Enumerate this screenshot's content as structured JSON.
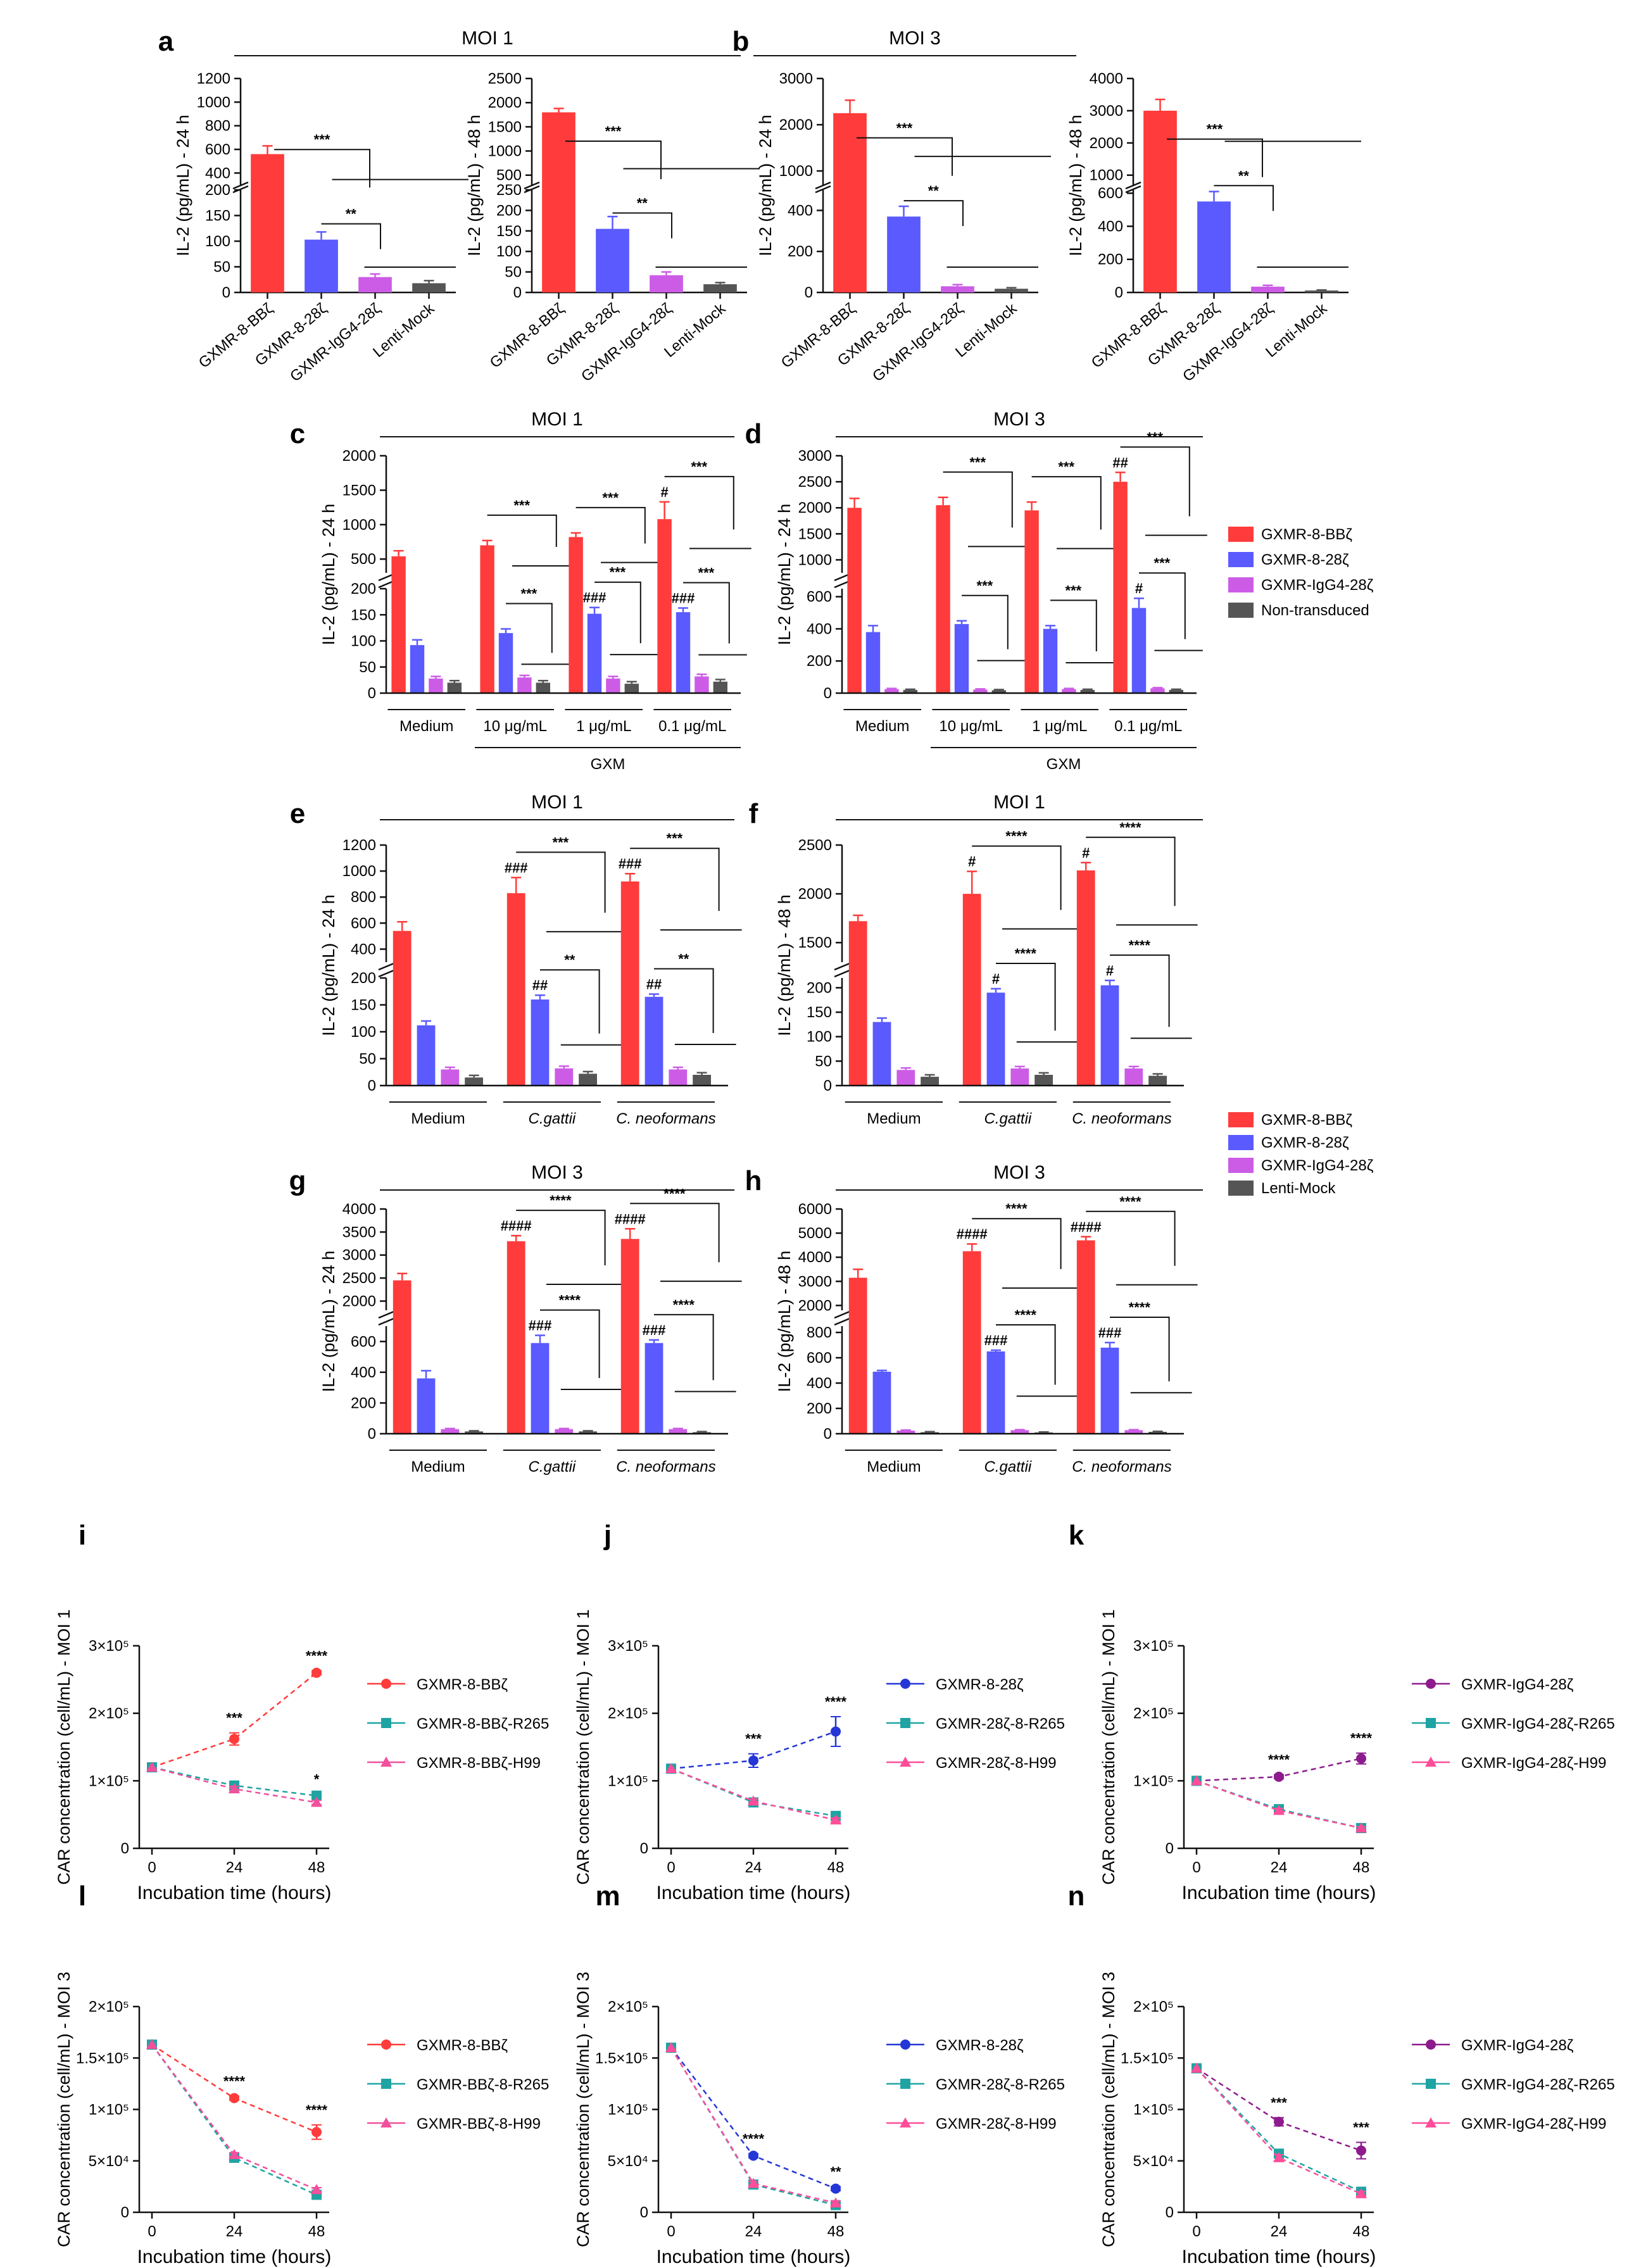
{
  "colors": {
    "red": "#ff3b3b",
    "blue": "#5a5aff",
    "purple": "#cc5ce6",
    "gray": "#555555",
    "teal": "#1fa3a3",
    "magenta": "#f0509c",
    "pink": "#ff4d9a",
    "navy": "#2436d6",
    "plum": "#8d1b8d"
  },
  "labels": [
    "a",
    "b",
    "c",
    "d",
    "e",
    "f",
    "g",
    "h",
    "i",
    "j",
    "k",
    "l",
    "m",
    "n"
  ],
  "headers": {
    "a": "MOI 1",
    "b": "MOI 3",
    "c": "MOI 1",
    "d": "MOI 3",
    "e": "MOI 1",
    "f": "MOI 1",
    "g": "MOI 3",
    "h": "MOI 3"
  },
  "legends": {
    "cd": [
      "GXMR-8-BBζ",
      "GXMR-8-28ζ",
      "GXMR-IgG4-28ζ",
      "Non-transduced"
    ],
    "efgh": [
      "GXMR-8-BBζ",
      "GXMR-8-28ζ",
      "GXMR-IgG4-28ζ",
      "Lenti-Mock"
    ]
  },
  "chart_data": [
    {
      "id": "a1",
      "type": "bar",
      "ylabel": "IL-2 (pg/mL) - 24 h",
      "categories": [
        "GXMR-8-BBζ",
        "GXMR-8-28ζ",
        "GXMR-IgG4-28ζ",
        "Lenti-Mock"
      ],
      "values": [
        560,
        103,
        30,
        18
      ],
      "errors": [
        70,
        15,
        6,
        5
      ],
      "ylim": [
        0,
        1200
      ],
      "break": [
        200,
        300
      ],
      "yticks_low": [
        "0",
        "50",
        "100",
        "150",
        "200"
      ],
      "yticks_high": [
        "400",
        "600",
        "800",
        "1000",
        "1200"
      ],
      "sig": [
        "***",
        "**"
      ]
    },
    {
      "id": "a2",
      "type": "bar",
      "ylabel": "IL-2 (pg/mL) - 48 h",
      "categories": [
        "GXMR-8-BBζ",
        "GXMR-8-28ζ",
        "GXMR-IgG4-28ζ",
        "Lenti-Mock"
      ],
      "values": [
        1800,
        155,
        42,
        20
      ],
      "errors": [
        80,
        30,
        8,
        4
      ],
      "ylim": [
        0,
        2500
      ],
      "break": [
        250,
        300
      ],
      "yticks_low": [
        "0",
        "50",
        "100",
        "150",
        "200",
        "250"
      ],
      "yticks_high": [
        "500",
        "1000",
        "1500",
        "2000",
        "2500"
      ],
      "sig": [
        "***",
        "**"
      ]
    },
    {
      "id": "b1",
      "type": "bar",
      "ylabel": "IL-2 (pg/mL) - 24 h",
      "categories": [
        "GXMR-8-BBζ",
        "GXMR-8-28ζ",
        "GXMR-IgG4-28ζ",
        "Lenti-Mock"
      ],
      "values": [
        2250,
        370,
        30,
        18
      ],
      "errors": [
        280,
        50,
        8,
        5
      ],
      "ylim": [
        0,
        3000
      ],
      "break": [
        500,
        700
      ],
      "yticks_low": [
        "0",
        "200",
        "400"
      ],
      "yticks_high": [
        "1000",
        "2000",
        "3000"
      ],
      "sig": [
        "***",
        "**"
      ]
    },
    {
      "id": "b2",
      "type": "bar",
      "ylabel": "IL-2 (pg/mL) - 48 h",
      "categories": [
        "GXMR-8-BBζ",
        "GXMR-8-28ζ",
        "GXMR-IgG4-28ζ",
        "Lenti-Mock"
      ],
      "values": [
        3000,
        550,
        35,
        12
      ],
      "errors": [
        350,
        60,
        8,
        3
      ],
      "ylim": [
        0,
        4000
      ],
      "break": [
        620,
        700
      ],
      "yticks_low": [
        "0",
        "200",
        "400",
        "600"
      ],
      "yticks_high": [
        "1000",
        "2000",
        "3000",
        "4000"
      ],
      "sig": [
        "***",
        "**"
      ]
    },
    {
      "id": "c",
      "type": "bar",
      "ylabel": "IL-2 (pg/mL) - 24 h",
      "groups": [
        "Medium",
        "10 μg/mL",
        "1 μg/mL",
        "0.1 μg/mL"
      ],
      "groupLabel": "GXM",
      "high": [
        540,
        700,
        820,
        1080
      ],
      "highErr": [
        80,
        70,
        60,
        250
      ],
      "low": [
        92,
        115,
        152,
        155
      ],
      "lowErr": [
        10,
        8,
        12,
        8
      ],
      "small": [
        [
          28,
          20
        ],
        [
          30,
          20
        ],
        [
          28,
          18
        ],
        [
          32,
          22
        ]
      ],
      "break": [
        200,
        300
      ],
      "yticks_low": [
        "0",
        "50",
        "100",
        "150",
        "200"
      ],
      "yticks_high": [
        "500",
        "1000",
        "1500",
        "2000"
      ],
      "ymax": 2000,
      "hash_high": [
        "",
        "",
        "",
        "#"
      ],
      "hash_low": [
        "",
        "",
        "###",
        "###"
      ],
      "sig": [
        "***",
        "***",
        "***",
        "***",
        "***"
      ]
    },
    {
      "id": "d",
      "type": "bar",
      "ylabel": "IL-2 (pg/mL) - 24 h",
      "groups": [
        "Medium",
        "10 μg/mL",
        "1 μg/mL",
        "0.1 μg/mL"
      ],
      "groupLabel": "GXM",
      "high": [
        2000,
        2050,
        1950,
        2500
      ],
      "highErr": [
        180,
        150,
        160,
        180
      ],
      "low": [
        380,
        430,
        400,
        530
      ],
      "lowErr": [
        40,
        20,
        20,
        60
      ],
      "small": [
        [
          25,
          20
        ],
        [
          22,
          18
        ],
        [
          25,
          20
        ],
        [
          30,
          20
        ]
      ],
      "break": [
        650,
        750
      ],
      "yticks_low": [
        "0",
        "200",
        "400",
        "600"
      ],
      "yticks_high": [
        "1000",
        "1500",
        "2000",
        "2500",
        "3000"
      ],
      "ymax": 3000,
      "hash_high": [
        "",
        "",
        "",
        "##"
      ],
      "hash_low": [
        "",
        "",
        "",
        "#"
      ],
      "sig": [
        "***",
        "***",
        "***",
        "***",
        "***"
      ]
    },
    {
      "id": "e",
      "type": "bar",
      "ylabel": "IL-2 (pg/mL) - 24 h",
      "groups": [
        "Medium",
        "C.gattii",
        "C. neoformans"
      ],
      "high": [
        540,
        830,
        920
      ],
      "highErr": [
        70,
        120,
        60
      ],
      "low": [
        112,
        160,
        165
      ],
      "lowErr": [
        8,
        8,
        5
      ],
      "small": [
        [
          30,
          15
        ],
        [
          32,
          22
        ],
        [
          30,
          20
        ]
      ],
      "break": [
        200,
        300
      ],
      "yticks_low": [
        "0",
        "50",
        "100",
        "150",
        "200"
      ],
      "yticks_high": [
        "400",
        "600",
        "800",
        "1000",
        "1200"
      ],
      "ymax": 1200,
      "hash_high": [
        "",
        "###",
        "###"
      ],
      "hash_low": [
        "",
        "##",
        "##"
      ],
      "sig": [
        "***",
        "**",
        "***",
        "**"
      ]
    },
    {
      "id": "f",
      "type": "bar",
      "ylabel": "IL-2 (pg/mL) - 48 h",
      "groups": [
        "Medium",
        "C.gattii",
        "C. neoformans"
      ],
      "high": [
        1720,
        2000,
        2240
      ],
      "highErr": [
        60,
        230,
        80
      ],
      "low": [
        130,
        190,
        205
      ],
      "lowErr": [
        8,
        8,
        10
      ],
      "small": [
        [
          32,
          18
        ],
        [
          35,
          22
        ],
        [
          35,
          20
        ]
      ],
      "break": [
        220,
        1300
      ],
      "yticks_low": [
        "0",
        "50",
        "100",
        "150",
        "200"
      ],
      "yticks_high": [
        "1500",
        "2000",
        "2500"
      ],
      "ymax": 2500,
      "hash_high": [
        "",
        "#",
        "#"
      ],
      "hash_low": [
        "",
        "#",
        "#"
      ],
      "sig": [
        "****",
        "****",
        "****",
        "****"
      ]
    },
    {
      "id": "g",
      "type": "bar",
      "ylabel": "IL-2 (pg/mL) - 24 h",
      "groups": [
        "Medium",
        "C.gattii",
        "C. neoformans"
      ],
      "high": [
        2450,
        3300,
        3350
      ],
      "highErr": [
        150,
        120,
        220
      ],
      "low": [
        360,
        590,
        590
      ],
      "lowErr": [
        50,
        50,
        20
      ],
      "small": [
        [
          30,
          15
        ],
        [
          30,
          15
        ],
        [
          30,
          10
        ]
      ],
      "break": [
        700,
        1800
      ],
      "yticks_low": [
        "0",
        "200",
        "400",
        "600"
      ],
      "yticks_high": [
        "2000",
        "2500",
        "3000",
        "3500",
        "4000"
      ],
      "ymax": 4000,
      "hash_high": [
        "",
        "####",
        "####"
      ],
      "hash_low": [
        "",
        "###",
        "###"
      ],
      "sig": [
        "****",
        "****",
        "****",
        "****"
      ]
    },
    {
      "id": "h",
      "type": "bar",
      "ylabel": "IL-2 (pg/mL) - 48 h",
      "groups": [
        "Medium",
        "C.gattii",
        "C. neoformans"
      ],
      "high": [
        3150,
        4250,
        4700
      ],
      "highErr": [
        350,
        300,
        150
      ],
      "low": [
        490,
        650,
        680
      ],
      "lowErr": [
        10,
        10,
        40
      ],
      "small": [
        [
          25,
          12
        ],
        [
          28,
          10
        ],
        [
          28,
          15
        ]
      ],
      "break": [
        850,
        1800
      ],
      "yticks_low": [
        "0",
        "200",
        "400",
        "600",
        "800"
      ],
      "yticks_high": [
        "2000",
        "3000",
        "4000",
        "5000",
        "6000"
      ],
      "ymax": 6000,
      "hash_high": [
        "",
        "####",
        "####"
      ],
      "hash_low": [
        "",
        "###",
        "###"
      ],
      "sig": [
        "****",
        "****",
        "****",
        "****"
      ]
    },
    {
      "id": "i",
      "type": "line",
      "ylabel": "CAR concentration (cell/mL) - MOI 1",
      "xlabel": "Incubation time (hours)",
      "x": [
        0,
        24,
        48
      ],
      "ymax": 300000,
      "yticks": [
        "0",
        "1×10⁵",
        "2×10⁵",
        "3×10⁵"
      ],
      "series": [
        {
          "name": "GXMR-8-BBζ",
          "values": [
            120000,
            162000,
            260000
          ],
          "err": [
            0,
            9000,
            3000
          ]
        },
        {
          "name": "GXMR-8-BBζ-R265",
          "values": [
            120000,
            93000,
            78000
          ],
          "err": [
            0,
            4000,
            4000
          ]
        },
        {
          "name": "GXMR-8-BBζ-H99",
          "values": [
            120000,
            88000,
            68000
          ],
          "err": [
            0,
            4000,
            3000
          ]
        }
      ],
      "sig": [
        "***",
        "****",
        "*"
      ]
    },
    {
      "id": "j",
      "type": "line",
      "ylabel": "CAR concentration (cell/mL) - MOI 1",
      "xlabel": "Incubation time (hours)",
      "x": [
        0,
        24,
        48
      ],
      "ymax": 300000,
      "yticks": [
        "0",
        "1×10⁵",
        "2×10⁵",
        "3×10⁵"
      ],
      "series": [
        {
          "name": "GXMR-8-28ζ",
          "values": [
            118000,
            130000,
            173000
          ],
          "err": [
            0,
            10000,
            22000
          ]
        },
        {
          "name": "GXMR-28ζ-8-R265",
          "values": [
            118000,
            68000,
            48000
          ],
          "err": [
            0,
            4000,
            3000
          ]
        },
        {
          "name": "GXMR-28ζ-8-H99",
          "values": [
            118000,
            70000,
            42000
          ],
          "err": [
            0,
            3000,
            3000
          ]
        }
      ],
      "sig": [
        "***",
        "****"
      ]
    },
    {
      "id": "k",
      "type": "line",
      "ylabel": "CAR concentration (cell/mL) - MOI 1",
      "xlabel": "Incubation time (hours)",
      "x": [
        0,
        24,
        48
      ],
      "ymax": 300000,
      "yticks": [
        "0",
        "1×10⁵",
        "2×10⁵",
        "3×10⁵"
      ],
      "series": [
        {
          "name": "GXMR-IgG4-28ζ",
          "values": [
            100000,
            106000,
            133000
          ],
          "err": [
            0,
            3000,
            8000
          ]
        },
        {
          "name": "GXMR-IgG4-28ζ-R265",
          "values": [
            100000,
            58000,
            30000
          ],
          "err": [
            0,
            3000,
            2000
          ]
        },
        {
          "name": "GXMR-IgG4-28ζ-H99",
          "values": [
            100000,
            56000,
            30000
          ],
          "err": [
            0,
            3000,
            2000
          ]
        }
      ],
      "sig": [
        "****",
        "****"
      ]
    },
    {
      "id": "l",
      "type": "line",
      "ylabel": "CAR concentration (cell/mL) - MOI 3",
      "xlabel": "Incubation time (hours)",
      "x": [
        0,
        24,
        48
      ],
      "ymax": 200000,
      "yticks": [
        "0",
        "5×10⁴",
        "1×10⁵",
        "1.5×10⁵",
        "2×10⁵"
      ],
      "series": [
        {
          "name": "GXMR-8-BBζ",
          "values": [
            163000,
            111000,
            78000
          ],
          "err": [
            0,
            2000,
            7000
          ]
        },
        {
          "name": "GXMR-BBζ-8-R265",
          "values": [
            163000,
            53000,
            17000
          ],
          "err": [
            0,
            2000,
            2000
          ]
        },
        {
          "name": "GXMR-BBζ-8-H99",
          "values": [
            163000,
            56000,
            22000
          ],
          "err": [
            0,
            2000,
            2000
          ]
        }
      ],
      "sig": [
        "****",
        "****"
      ]
    },
    {
      "id": "m",
      "type": "line",
      "ylabel": "CAR concentration (cell/mL) - MOI 3",
      "xlabel": "Incubation time (hours)",
      "x": [
        0,
        24,
        48
      ],
      "ymax": 200000,
      "yticks": [
        "0",
        "5×10⁴",
        "1×10⁵",
        "1.5×10⁵",
        "2×10⁵"
      ],
      "series": [
        {
          "name": "GXMR-8-28ζ",
          "values": [
            160000,
            55000,
            23000
          ],
          "err": [
            0,
            2000,
            2000
          ]
        },
        {
          "name": "GXMR-28ζ-8-R265",
          "values": [
            160000,
            27000,
            7000
          ],
          "err": [
            0,
            2000,
            2000
          ]
        },
        {
          "name": "GXMR-28ζ-8-H99",
          "values": [
            160000,
            28000,
            9000
          ],
          "err": [
            0,
            2000,
            2000
          ]
        }
      ],
      "sig": [
        "****",
        "**"
      ]
    },
    {
      "id": "n",
      "type": "line",
      "ylabel": "CAR concentration (cell/mL) - MOI 3",
      "xlabel": "Incubation time (hours)",
      "x": [
        0,
        24,
        48
      ],
      "ymax": 200000,
      "yticks": [
        "0",
        "5×10⁴",
        "1×10⁵",
        "1.5×10⁵",
        "2×10⁵"
      ],
      "series": [
        {
          "name": "GXMR-IgG4-28ζ",
          "values": [
            140000,
            88000,
            60000
          ],
          "err": [
            0,
            4000,
            8000
          ]
        },
        {
          "name": "GXMR-IgG4-28ζ-R265",
          "values": [
            140000,
            57000,
            20000
          ],
          "err": [
            0,
            4000,
            2000
          ]
        },
        {
          "name": "GXMR-IgG4-28ζ-H99",
          "values": [
            140000,
            53000,
            18000
          ],
          "err": [
            0,
            3000,
            2000
          ]
        }
      ],
      "sig": [
        "***",
        "***"
      ]
    }
  ]
}
